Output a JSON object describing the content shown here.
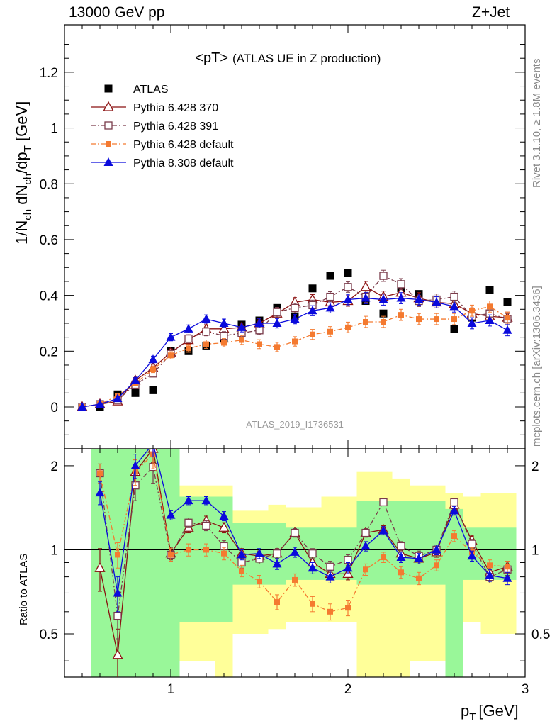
{
  "header": {
    "left": "13000 GeV pp",
    "right": "Z+Jet"
  },
  "side_labels": {
    "rivet": "Rivet 3.1.10, ≥ 1.8M events",
    "mcplots": "mcplots.cern.ch [arXiv:1306.3436]"
  },
  "chart_data": {
    "type": "scatter",
    "title": "<pT>",
    "subtitle": "(ATLAS UE in Z production)",
    "analysis_id": "ATLAS_2019_I1736531",
    "xlabel": "p",
    "xlabel_sub": "T",
    "xlabel_unit": "[GeV]",
    "ylabel": "1/N_ch dN_ch/dp_T [GeV]",
    "ylabel_ratio": "Ratio to ATLAS",
    "xlim": [
      0.4,
      3.0
    ],
    "ylim": [
      -0.15,
      1.37
    ],
    "ratio_ylim": [
      0.35,
      2.3
    ],
    "x_ticks": [
      1,
      2,
      3
    ],
    "x_tick_labels": [
      "1",
      "2",
      "3"
    ],
    "y_ticks": [
      0,
      0.2,
      0.4,
      0.6,
      0.8,
      1,
      1.2
    ],
    "y_tick_labels": [
      "0",
      "0.2",
      "0.4",
      "0.6",
      "0.8",
      "1",
      "1.2"
    ],
    "ratio_ticks": [
      0.5,
      1,
      2
    ],
    "ratio_tick_labels": [
      "0.5",
      "1",
      "2"
    ],
    "x": [
      0.5,
      0.6,
      0.7,
      0.8,
      0.9,
      1.0,
      1.1,
      1.2,
      1.3,
      1.4,
      1.5,
      1.6,
      1.7,
      1.8,
      1.9,
      2.0,
      2.1,
      2.2,
      2.3,
      2.4,
      2.5,
      2.6,
      2.7,
      2.8,
      2.9
    ],
    "series": [
      {
        "name": "ATLAS",
        "marker": "square-filled",
        "color": "#000000",
        "dash": "",
        "values": [
          null,
          0.0,
          0.045,
          0.05,
          0.06,
          0.2,
          0.2,
          0.22,
          0.245,
          0.295,
          0.31,
          0.355,
          0.325,
          0.425,
          0.47,
          0.48,
          0.38,
          0.335,
          0.425,
          0.405,
          0.385,
          0.28,
          0.32,
          0.42,
          0.375
        ],
        "errors": [
          null,
          0.002,
          0.003,
          0.003,
          0.003,
          0.004,
          0.004,
          0.004,
          0.004,
          0.004,
          0.004,
          0.004,
          0.004,
          0.004,
          0.004,
          0.004,
          0.004,
          0.004,
          0.004,
          0.004,
          0.004,
          0.004,
          0.004,
          0.004,
          0.004
        ],
        "ratio": [],
        "ratio_errors": []
      },
      {
        "name": "Pythia 6.428 370",
        "marker": "triangle-open",
        "color": "#8b1010",
        "dash": "",
        "values": [
          0.0,
          0.01,
          0.02,
          0.095,
          0.14,
          0.195,
          0.24,
          0.28,
          0.28,
          0.285,
          0.3,
          0.335,
          0.375,
          0.385,
          0.375,
          0.38,
          0.43,
          0.395,
          0.41,
          0.39,
          0.375,
          0.37,
          0.335,
          0.325,
          0.32
        ],
        "errors": [
          0.003,
          0.004,
          0.006,
          0.01,
          0.012,
          0.013,
          0.014,
          0.015,
          0.015,
          0.016,
          0.016,
          0.017,
          0.017,
          0.018,
          0.018,
          0.019,
          0.02,
          0.02,
          0.02,
          0.02,
          0.02,
          0.02,
          0.02,
          0.02,
          0.02
        ],
        "ratio": [
          0.86,
          0.42,
          1.9,
          2.3,
          0.97,
          1.2,
          1.27,
          1.2,
          0.97,
          0.95,
          0.97,
          1.15,
          0.9,
          0.82,
          0.82,
          1.15,
          1.18,
          0.97,
          0.93,
          0.98,
          1.45,
          1.08,
          0.83,
          0.87
        ],
        "ratio_errors": [
          0.15,
          0.1,
          0.2,
          0.25,
          0.05,
          0.05,
          0.05,
          0.05,
          0.04,
          0.04,
          0.04,
          0.04,
          0.04,
          0.04,
          0.04,
          0.04,
          0.04,
          0.04,
          0.04,
          0.04,
          0.05,
          0.04,
          0.04,
          0.04
        ]
      },
      {
        "name": "Pythia 6.428 391",
        "marker": "square-open",
        "color": "#7a3b4a",
        "dash": "7,3,2,3",
        "values": [
          0.0,
          0.01,
          0.025,
          0.08,
          0.12,
          0.19,
          0.245,
          0.27,
          0.255,
          0.265,
          0.275,
          0.34,
          0.355,
          0.365,
          0.395,
          0.43,
          0.395,
          0.47,
          0.44,
          0.38,
          0.385,
          0.395,
          0.325,
          0.335,
          0.315
        ],
        "errors": [
          0.003,
          0.004,
          0.006,
          0.01,
          0.012,
          0.013,
          0.014,
          0.015,
          0.015,
          0.016,
          0.016,
          0.017,
          0.017,
          0.018,
          0.018,
          0.019,
          0.02,
          0.02,
          0.02,
          0.02,
          0.02,
          0.02,
          0.02,
          0.02,
          0.02
        ],
        "ratio": [
          1.88,
          0.58,
          1.7,
          1.98,
          0.96,
          1.25,
          1.22,
          1.03,
          0.9,
          0.93,
          0.97,
          1.15,
          0.97,
          0.87,
          0.92,
          1.15,
          1.48,
          1.03,
          0.95,
          1.0,
          1.48,
          1.05,
          0.8,
          0.85
        ],
        "ratio_errors": [
          0.15,
          0.1,
          0.2,
          0.25,
          0.05,
          0.05,
          0.05,
          0.05,
          0.04,
          0.04,
          0.04,
          0.04,
          0.04,
          0.04,
          0.04,
          0.04,
          0.04,
          0.04,
          0.04,
          0.04,
          0.05,
          0.04,
          0.04,
          0.04
        ]
      },
      {
        "name": "Pythia 6.428 default",
        "marker": "square-filled-small",
        "color": "#f47a30",
        "dash": "7,3,2,3",
        "values": [
          0.0,
          0.01,
          0.04,
          0.085,
          0.135,
          0.185,
          0.21,
          0.225,
          0.23,
          0.24,
          0.225,
          0.215,
          0.235,
          0.26,
          0.27,
          0.285,
          0.305,
          0.305,
          0.33,
          0.315,
          0.315,
          0.315,
          0.345,
          0.36,
          0.32
        ],
        "errors": [
          0.003,
          0.004,
          0.006,
          0.01,
          0.012,
          0.013,
          0.014,
          0.015,
          0.015,
          0.016,
          0.016,
          0.017,
          0.017,
          0.018,
          0.018,
          0.019,
          0.02,
          0.02,
          0.02,
          0.02,
          0.02,
          0.02,
          0.02,
          0.02,
          0.02
        ],
        "ratio": [
          1.88,
          0.96,
          1.9,
          2.2,
          0.96,
          1.0,
          1.0,
          0.97,
          0.84,
          0.77,
          0.65,
          0.78,
          0.64,
          0.6,
          0.62,
          0.85,
          0.94,
          0.83,
          0.79,
          0.88,
          1.12,
          0.98,
          0.88,
          0.87
        ],
        "ratio_errors": [
          0.15,
          0.1,
          0.2,
          0.25,
          0.05,
          0.05,
          0.05,
          0.05,
          0.04,
          0.04,
          0.04,
          0.04,
          0.04,
          0.04,
          0.04,
          0.04,
          0.04,
          0.04,
          0.04,
          0.04,
          0.05,
          0.04,
          0.04,
          0.04
        ]
      },
      {
        "name": "Pythia 8.308 default",
        "marker": "triangle-filled",
        "color": "#0a0adc",
        "dash": "",
        "values": [
          0.0,
          0.01,
          0.03,
          0.095,
          0.17,
          0.25,
          0.28,
          0.315,
          0.3,
          0.285,
          0.3,
          0.3,
          0.315,
          0.345,
          0.355,
          0.385,
          0.39,
          0.385,
          0.39,
          0.385,
          0.375,
          0.36,
          0.3,
          0.31,
          0.275
        ],
        "errors": [
          0.003,
          0.004,
          0.006,
          0.01,
          0.012,
          0.013,
          0.014,
          0.015,
          0.015,
          0.016,
          0.016,
          0.017,
          0.017,
          0.018,
          0.018,
          0.019,
          0.02,
          0.02,
          0.02,
          0.02,
          0.02,
          0.02,
          0.02,
          0.02,
          0.02
        ],
        "ratio": [
          1.6,
          0.7,
          2.0,
          2.4,
          1.33,
          1.5,
          1.5,
          1.32,
          0.96,
          0.97,
          0.89,
          0.98,
          0.86,
          0.8,
          0.86,
          1.03,
          1.17,
          0.94,
          0.93,
          1.0,
          1.38,
          0.95,
          0.81,
          0.79
        ],
        "ratio_errors": [
          0.15,
          0.1,
          0.2,
          0.25,
          0.05,
          0.05,
          0.05,
          0.05,
          0.04,
          0.04,
          0.04,
          0.04,
          0.04,
          0.04,
          0.04,
          0.04,
          0.04,
          0.04,
          0.04,
          0.04,
          0.05,
          0.04,
          0.04,
          0.04
        ]
      }
    ],
    "ratio_x": [
      0.6,
      0.7,
      0.8,
      0.9,
      1.0,
      1.1,
      1.2,
      1.3,
      1.4,
      1.5,
      1.6,
      1.7,
      1.8,
      1.9,
      2.0,
      2.1,
      2.2,
      2.3,
      2.4,
      2.5,
      2.6,
      2.7,
      2.8,
      2.9
    ],
    "uncertainty_bands": {
      "x_edges": [
        0.55,
        0.65,
        0.75,
        0.85,
        0.95,
        1.05,
        1.15,
        1.25,
        1.35,
        1.45,
        1.55,
        1.65,
        1.75,
        1.85,
        1.95,
        2.05,
        2.15,
        2.25,
        2.35,
        2.45,
        2.55,
        2.65,
        2.75,
        2.85,
        2.95
      ],
      "green": [
        [
          0.35,
          2.3
        ],
        [
          0.35,
          2.3
        ],
        [
          0.35,
          2.3
        ],
        [
          0.35,
          2.3
        ],
        [
          0.35,
          2.3
        ],
        [
          0.55,
          1.55
        ],
        [
          0.55,
          1.55
        ],
        [
          0.55,
          1.55
        ],
        [
          0.75,
          1.25
        ],
        [
          0.75,
          1.25
        ],
        [
          0.75,
          1.25
        ],
        [
          0.78,
          1.2
        ],
        [
          0.78,
          1.2
        ],
        [
          0.78,
          1.2
        ],
        [
          0.78,
          1.2
        ],
        [
          0.75,
          1.5
        ],
        [
          0.75,
          1.5
        ],
        [
          0.75,
          1.5
        ],
        [
          0.75,
          1.5
        ],
        [
          0.75,
          1.5
        ],
        [
          0.35,
          1.4
        ],
        [
          0.78,
          1.2
        ],
        [
          0.78,
          1.2
        ],
        [
          0.78,
          1.2
        ]
      ],
      "yellow": [
        [
          0.35,
          2.3
        ],
        [
          0.35,
          2.3
        ],
        [
          0.35,
          2.3
        ],
        [
          0.35,
          2.3
        ],
        [
          0.35,
          2.3
        ],
        [
          0.4,
          1.7
        ],
        [
          0.4,
          1.7
        ],
        [
          0.35,
          1.7
        ],
        [
          0.5,
          1.38
        ],
        [
          0.5,
          1.38
        ],
        [
          0.52,
          1.45
        ],
        [
          0.55,
          1.42
        ],
        [
          0.55,
          1.42
        ],
        [
          0.55,
          1.55
        ],
        [
          0.55,
          1.55
        ],
        [
          0.35,
          1.9
        ],
        [
          0.35,
          1.9
        ],
        [
          0.35,
          1.8
        ],
        [
          0.4,
          1.7
        ],
        [
          0.4,
          1.7
        ],
        [
          0.35,
          1.6
        ],
        [
          0.55,
          1.55
        ],
        [
          0.5,
          1.6
        ],
        [
          0.5,
          1.6
        ]
      ]
    }
  }
}
